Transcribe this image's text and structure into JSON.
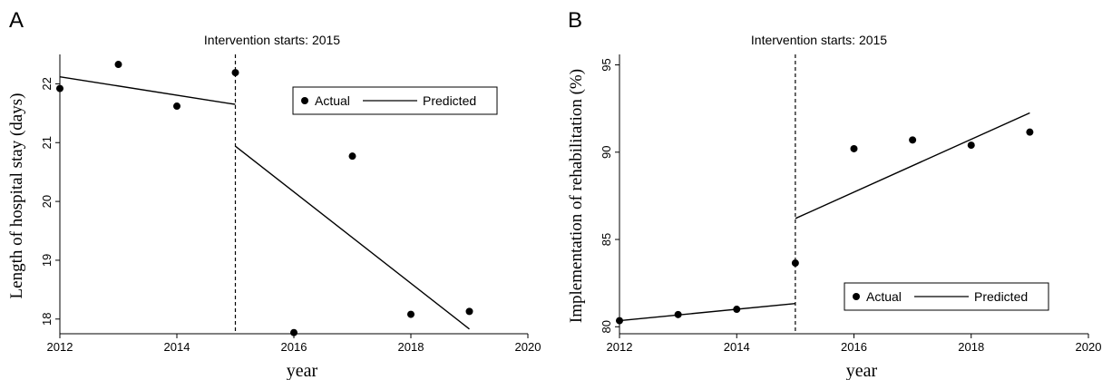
{
  "chart_data": [
    {
      "panel_label": "A",
      "type": "scatter",
      "title": "Intervention starts: 2015",
      "xlabel": "year",
      "ylabel": "Length of hospital stay (days)",
      "xlim": [
        2012,
        2020
      ],
      "ylim": [
        17.75,
        22.5
      ],
      "xticks": [
        2012,
        2014,
        2016,
        2018,
        2020
      ],
      "yticks": [
        18,
        19,
        20,
        21,
        22
      ],
      "intervention_x": 2015,
      "legend": {
        "position": "top-right",
        "actual_label": "Actual",
        "predicted_label": "Predicted"
      },
      "series": [
        {
          "name": "Actual",
          "kind": "points",
          "x": [
            2012,
            2013,
            2014,
            2015,
            2016,
            2017,
            2018,
            2019
          ],
          "y": [
            21.92,
            22.33,
            21.62,
            22.19,
            17.77,
            20.77,
            18.08,
            18.13
          ]
        },
        {
          "name": "Predicted",
          "kind": "line",
          "segments": [
            {
              "x": [
                2012,
                2015
              ],
              "y": [
                22.12,
                21.65
              ]
            },
            {
              "x": [
                2015,
                2019
              ],
              "y": [
                20.94,
                17.83
              ]
            }
          ]
        }
      ]
    },
    {
      "panel_label": "B",
      "type": "scatter",
      "title": "Intervention starts: 2015",
      "xlabel": "year",
      "ylabel": "Implementation of rehabilitation (%)",
      "xlim": [
        2012,
        2020
      ],
      "ylim": [
        79.6,
        95.6
      ],
      "xticks": [
        2012,
        2014,
        2016,
        2018,
        2020
      ],
      "yticks": [
        80,
        85,
        90,
        95
      ],
      "intervention_x": 2015,
      "legend": {
        "position": "bottom-right",
        "actual_label": "Actual",
        "predicted_label": "Predicted"
      },
      "series": [
        {
          "name": "Actual",
          "kind": "points",
          "x": [
            2012,
            2013,
            2014,
            2015,
            2016,
            2017,
            2018,
            2019
          ],
          "y": [
            80.35,
            80.7,
            81.0,
            83.65,
            90.2,
            90.7,
            90.4,
            91.15
          ]
        },
        {
          "name": "Predicted",
          "kind": "line",
          "segments": [
            {
              "x": [
                2012,
                2015
              ],
              "y": [
                80.35,
                81.33
              ]
            },
            {
              "x": [
                2015,
                2019
              ],
              "y": [
                86.2,
                92.25
              ]
            }
          ]
        }
      ]
    }
  ]
}
